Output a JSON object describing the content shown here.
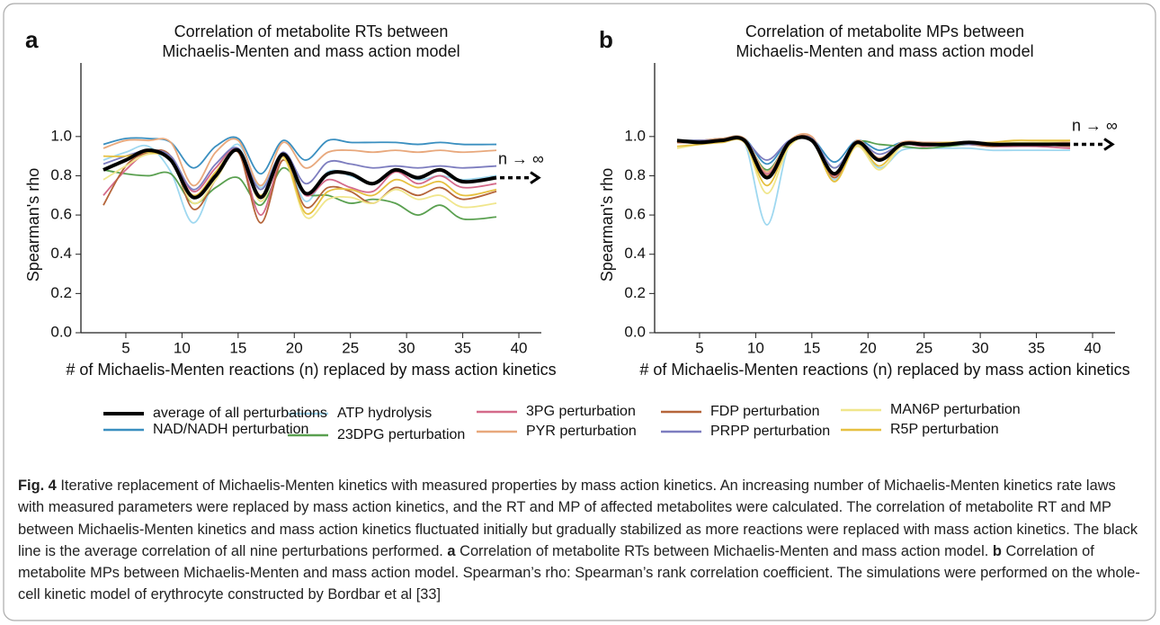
{
  "chart_data": [
    {
      "type": "line",
      "panel": "a",
      "title": [
        "Correlation of metabolite RTs between",
        "Michaelis-Menten and mass action model"
      ],
      "x_label": "# of Michaelis-Menten reactions (n) replaced by mass action kinetics",
      "y_label": "Spearman's rho",
      "annotation": "n → ∞",
      "x": [
        3,
        5,
        7,
        9,
        11,
        13,
        15,
        17,
        19,
        21,
        23,
        25,
        27,
        29,
        31,
        33,
        35,
        38
      ],
      "xlim": [
        1,
        42
      ],
      "xticks": [
        5,
        10,
        15,
        20,
        25,
        30,
        35,
        40
      ],
      "ylim": [
        0,
        1.375
      ],
      "yticks": [
        {
          "value": 0,
          "label": "0.0"
        },
        {
          "value": 0.2,
          "label": "0.2"
        },
        {
          "value": 0.4,
          "label": "0.4"
        },
        {
          "value": 0.6,
          "label": "0.6"
        },
        {
          "value": 0.8,
          "label": "0.8"
        },
        {
          "value": 1,
          "label": "1.0"
        }
      ],
      "series": [
        {
          "name": "NAD/NADH perturbation",
          "color": "#3a8fc0",
          "values": [
            0.96,
            0.99,
            0.99,
            0.97,
            0.84,
            0.95,
            0.99,
            0.81,
            0.98,
            0.88,
            0.98,
            0.97,
            0.97,
            0.97,
            0.96,
            0.97,
            0.96,
            0.96
          ]
        },
        {
          "name": "ATP hydrolysis",
          "color": "#9fd8f0",
          "values": [
            0.88,
            0.92,
            0.95,
            0.82,
            0.56,
            0.8,
            0.96,
            0.74,
            0.91,
            0.67,
            0.82,
            0.8,
            0.76,
            0.83,
            0.78,
            0.8,
            0.78,
            0.8
          ]
        },
        {
          "name": "23DPG perturbation",
          "color": "#5aa050",
          "values": [
            0.83,
            0.81,
            0.8,
            0.81,
            0.66,
            0.74,
            0.79,
            0.65,
            0.84,
            0.71,
            0.7,
            0.66,
            0.68,
            0.66,
            0.6,
            0.65,
            0.58,
            0.59
          ]
        },
        {
          "name": "3PG perturbation",
          "color": "#d46a8a",
          "values": [
            0.7,
            0.83,
            0.92,
            0.9,
            0.72,
            0.84,
            0.93,
            0.6,
            0.9,
            0.7,
            0.78,
            0.74,
            0.72,
            0.82,
            0.76,
            0.8,
            0.74,
            0.76
          ]
        },
        {
          "name": "PYR perturbation",
          "color": "#e8a87c",
          "values": [
            0.94,
            0.98,
            0.98,
            0.97,
            0.75,
            0.92,
            0.98,
            0.75,
            0.97,
            0.84,
            0.92,
            0.93,
            0.92,
            0.93,
            0.92,
            0.93,
            0.92,
            0.93
          ]
        },
        {
          "name": "FDP perturbation",
          "color": "#b5653a",
          "values": [
            0.65,
            0.85,
            0.92,
            0.9,
            0.63,
            0.78,
            0.92,
            0.56,
            0.88,
            0.64,
            0.74,
            0.72,
            0.66,
            0.74,
            0.7,
            0.74,
            0.68,
            0.72
          ]
        },
        {
          "name": "PRPP perturbation",
          "color": "#7d7dbf",
          "values": [
            0.86,
            0.9,
            0.93,
            0.9,
            0.73,
            0.86,
            0.94,
            0.73,
            0.92,
            0.76,
            0.87,
            0.86,
            0.84,
            0.85,
            0.84,
            0.85,
            0.84,
            0.85
          ]
        },
        {
          "name": "MAN6P perturbation",
          "color": "#f0e68c",
          "values": [
            0.78,
            0.85,
            0.91,
            0.88,
            0.66,
            0.78,
            0.93,
            0.67,
            0.89,
            0.59,
            0.68,
            0.69,
            0.66,
            0.73,
            0.68,
            0.7,
            0.64,
            0.66
          ]
        },
        {
          "name": "R5P perturbation",
          "color": "#e6c040",
          "values": [
            0.9,
            0.9,
            0.92,
            0.88,
            0.7,
            0.82,
            0.93,
            0.7,
            0.9,
            0.61,
            0.72,
            0.73,
            0.7,
            0.78,
            0.74,
            0.77,
            0.7,
            0.73
          ]
        },
        {
          "name": "average of all perturbations",
          "color": "#000000",
          "values": [
            0.83,
            0.88,
            0.93,
            0.88,
            0.69,
            0.8,
            0.93,
            0.69,
            0.91,
            0.71,
            0.81,
            0.81,
            0.76,
            0.83,
            0.79,
            0.83,
            0.77,
            0.79
          ]
        }
      ]
    },
    {
      "type": "line",
      "panel": "b",
      "title": [
        "Correlation of metabolite MPs between",
        "Michaelis-Menten and mass action model"
      ],
      "x_label": "# of Michaelis-Menten reactions (n) replaced by mass action kinetics",
      "y_label": "Spearman's rho",
      "annotation": "n → ∞",
      "x": [
        3,
        5,
        7,
        9,
        11,
        13,
        15,
        17,
        19,
        21,
        23,
        25,
        27,
        29,
        31,
        33,
        35,
        38
      ],
      "xlim": [
        1,
        42
      ],
      "xticks": [
        5,
        10,
        15,
        20,
        25,
        30,
        35,
        40
      ],
      "ylim": [
        0,
        1.375
      ],
      "yticks": [
        {
          "value": 0,
          "label": "0.0"
        },
        {
          "value": 0.2,
          "label": "0.2"
        },
        {
          "value": 0.4,
          "label": "0.4"
        },
        {
          "value": 0.6,
          "label": "0.6"
        },
        {
          "value": 0.8,
          "label": "0.8"
        },
        {
          "value": 1,
          "label": "1.0"
        }
      ],
      "series": [
        {
          "color": "#3a8fc0",
          "values": [
            0.98,
            0.98,
            0.99,
            0.99,
            0.86,
            0.98,
            0.99,
            0.87,
            0.98,
            0.93,
            0.97,
            0.97,
            0.97,
            0.97,
            0.97,
            0.97,
            0.97,
            0.97
          ]
        },
        {
          "color": "#9fd8f0",
          "values": [
            0.97,
            0.97,
            0.98,
            0.97,
            0.55,
            0.96,
            0.98,
            0.78,
            0.96,
            0.84,
            0.93,
            0.94,
            0.94,
            0.94,
            0.93,
            0.93,
            0.93,
            0.93
          ]
        },
        {
          "color": "#5aa050",
          "values": [
            0.98,
            0.98,
            0.98,
            0.98,
            0.83,
            0.97,
            0.98,
            0.84,
            0.97,
            0.96,
            0.95,
            0.94,
            0.95,
            0.96,
            0.96,
            0.96,
            0.96,
            0.96
          ]
        },
        {
          "color": "#d46a8a",
          "values": [
            0.97,
            0.97,
            0.98,
            0.98,
            0.81,
            0.97,
            0.99,
            0.8,
            0.97,
            0.89,
            0.96,
            0.95,
            0.96,
            0.96,
            0.95,
            0.95,
            0.95,
            0.94
          ]
        },
        {
          "color": "#e8a87c",
          "values": [
            0.98,
            0.98,
            0.99,
            0.99,
            0.82,
            0.98,
            1.0,
            0.81,
            0.98,
            0.89,
            0.97,
            0.97,
            0.97,
            0.97,
            0.97,
            0.97,
            0.97,
            0.97
          ]
        },
        {
          "color": "#b5653a",
          "values": [
            0.97,
            0.97,
            0.98,
            0.98,
            0.8,
            0.97,
            0.99,
            0.79,
            0.97,
            0.88,
            0.96,
            0.96,
            0.96,
            0.96,
            0.95,
            0.96,
            0.96,
            0.95
          ]
        },
        {
          "color": "#7d7dbf",
          "values": [
            0.98,
            0.98,
            0.98,
            0.98,
            0.88,
            0.98,
            0.99,
            0.84,
            0.97,
            0.91,
            0.96,
            0.96,
            0.96,
            0.96,
            0.96,
            0.96,
            0.96,
            0.96
          ]
        },
        {
          "color": "#f0e68c",
          "values": [
            0.94,
            0.96,
            0.97,
            0.97,
            0.71,
            0.95,
            0.98,
            0.77,
            0.95,
            0.83,
            0.95,
            0.96,
            0.97,
            0.97,
            0.97,
            0.97,
            0.97,
            0.98
          ]
        },
        {
          "color": "#e6c040",
          "values": [
            0.95,
            0.96,
            0.97,
            0.97,
            0.75,
            0.96,
            0.98,
            0.77,
            0.96,
            0.85,
            0.96,
            0.96,
            0.97,
            0.97,
            0.97,
            0.98,
            0.98,
            0.98
          ]
        },
        {
          "color": "#000000",
          "values": [
            0.98,
            0.97,
            0.98,
            0.98,
            0.79,
            0.97,
            0.98,
            0.81,
            0.97,
            0.88,
            0.96,
            0.96,
            0.96,
            0.97,
            0.96,
            0.96,
            0.96,
            0.96
          ]
        }
      ]
    }
  ],
  "caption": {
    "label": "Fig. 4",
    "text": " Iterative replacement of Michaelis-Menten kinetics with measured properties by mass action kinetics. An increasing number of Michaelis-Menten kinetics rate laws with measured parameters were replaced by mass action kinetics, and the RT and MP of affected metabolites were calculated. The correlation of metabolite RT and MP between Michaelis-Menten kinetics and mass action kinetics fluctuated initially but gradually stabilized as more reactions were replaced with mass action kinetics. The black line is the average correlation of all nine perturbations performed. ",
    "a_label": "a",
    "a_text": " Correlation of metabolite RTs between Michaelis-Menten and mass action model. ",
    "b_label": "b",
    "b_text": " Correlation of metabolite MPs between Michaelis-Menten and mass action model. Spearman’s rho: Spearman’s rank correlation coefficient. The simulations were performed on the whole-cell kinetic model of erythrocyte constructed by Bordbar et al [33]"
  }
}
